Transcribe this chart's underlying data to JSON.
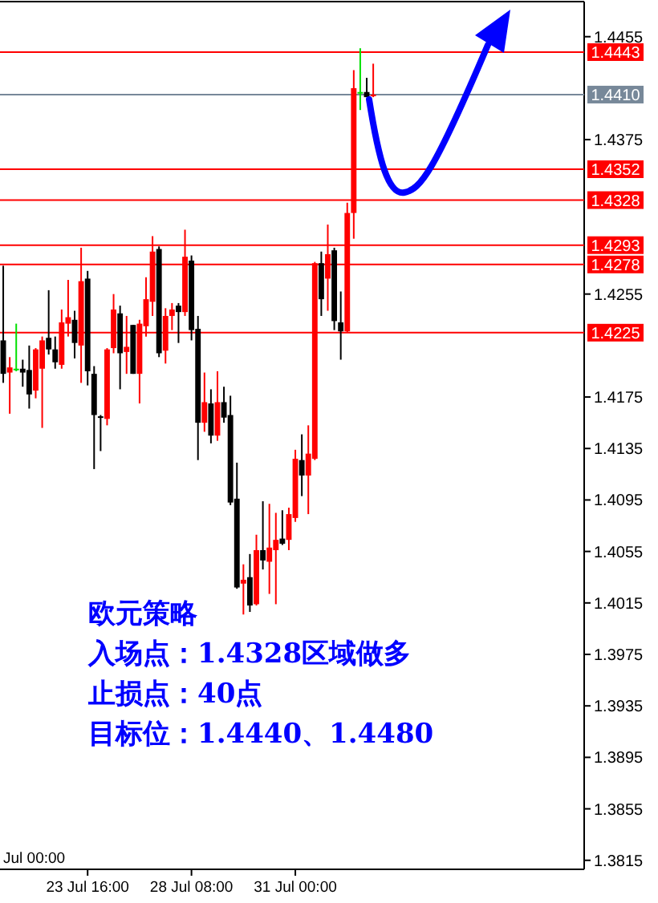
{
  "chart_data": {
    "type": "candlestick",
    "categories": [
      null,
      null,
      null,
      null,
      null,
      null,
      null,
      null,
      null,
      null,
      null,
      null,
      null,
      "23 Jul 16:00",
      null,
      null,
      null,
      null,
      null,
      null,
      null,
      null,
      null,
      null,
      null,
      null,
      null,
      null,
      null,
      "28 Jul 08:00",
      null,
      null,
      null,
      null,
      null,
      null,
      null,
      null,
      null,
      null,
      null,
      null,
      null,
      null,
      null,
      "31 Jul 00:00",
      null,
      null,
      null,
      null,
      null,
      null,
      null,
      null,
      null,
      null,
      null,
      null,
      null,
      null,
      null,
      null,
      null,
      null,
      null,
      null,
      null,
      null,
      null,
      null,
      null,
      null,
      null,
      null,
      null,
      null,
      null,
      null,
      null,
      null,
      null,
      null,
      null,
      null,
      null,
      null,
      null,
      null,
      null,
      null
    ],
    "ohlc": [
      [
        1.4219,
        1.4277,
        1.4186,
        1.4193
      ],
      [
        1.4194,
        1.4206,
        1.4162,
        1.4198
      ],
      [
        1.4197,
        1.4232,
        1.4195,
        1.4197
      ],
      [
        1.4197,
        1.4204,
        1.4183,
        1.4194
      ],
      [
        1.4196,
        1.4215,
        1.4166,
        1.4177
      ],
      [
        1.418,
        1.4213,
        1.4174,
        1.4212
      ],
      [
        1.4197,
        1.4222,
        1.4151,
        1.4219
      ],
      [
        1.4221,
        1.4258,
        1.4208,
        1.4212
      ],
      [
        1.4212,
        1.4222,
        1.4197,
        1.4202
      ],
      [
        1.42,
        1.4243,
        1.4197,
        1.4233
      ],
      [
        1.4232,
        1.4266,
        1.4222,
        1.4237
      ],
      [
        1.4235,
        1.4242,
        1.4205,
        1.4217
      ],
      [
        1.4215,
        1.4291,
        1.4186,
        1.4265
      ],
      [
        1.4267,
        1.4273,
        1.4184,
        1.4195
      ],
      [
        1.4193,
        1.4199,
        1.4119,
        1.4161
      ],
      [
        1.416,
        1.4161,
        1.4133,
        1.4159
      ],
      [
        1.4158,
        1.4213,
        1.4153,
        1.4212
      ],
      [
        1.4213,
        1.4255,
        1.4209,
        1.4243
      ],
      [
        1.424,
        1.4246,
        1.4181,
        1.4209
      ],
      [
        1.421,
        1.4238,
        1.4193,
        1.4214
      ],
      [
        1.4231,
        1.4231,
        1.4193,
        1.4193
      ],
      [
        1.4193,
        1.4235,
        1.417,
        1.4232
      ],
      [
        1.423,
        1.4268,
        1.4222,
        1.4251
      ],
      [
        1.4249,
        1.43,
        1.4238,
        1.4288
      ],
      [
        1.429,
        1.4292,
        1.4206,
        1.4209
      ],
      [
        1.4211,
        1.4244,
        1.4201,
        1.4238
      ],
      [
        1.4238,
        1.4248,
        1.4227,
        1.4243
      ],
      [
        1.4246,
        1.4248,
        1.4217,
        1.4241
      ],
      [
        1.4241,
        1.4305,
        1.4238,
        1.4284
      ],
      [
        1.4281,
        1.4285,
        1.4219,
        1.4227
      ],
      [
        1.4228,
        1.4238,
        1.4126,
        1.4155
      ],
      [
        1.4155,
        1.4194,
        1.4148,
        1.4171
      ],
      [
        1.417,
        1.4181,
        1.4139,
        1.4145
      ],
      [
        1.4145,
        1.4195,
        1.4141,
        1.4171
      ],
      [
        1.4171,
        1.4183,
        1.4155,
        1.4159
      ],
      [
        1.4161,
        1.4176,
        1.4091,
        1.4093
      ],
      [
        1.4096,
        1.4124,
        1.4026,
        1.4027
      ],
      [
        1.403,
        1.4045,
        1.4006,
        1.4033
      ],
      [
        1.4035,
        1.4053,
        1.4008,
        1.4013
      ],
      [
        1.4014,
        1.4068,
        1.4013,
        1.4056
      ],
      [
        1.4056,
        1.4094,
        1.4041,
        1.4048
      ],
      [
        1.4047,
        1.4092,
        1.4022,
        1.4058
      ],
      [
        1.4056,
        1.4085,
        1.4014,
        1.4064
      ],
      [
        1.4065,
        1.4087,
        1.406,
        1.4061
      ],
      [
        1.4064,
        1.4089,
        1.4056,
        1.4084
      ],
      [
        1.4081,
        1.4134,
        1.4078,
        1.4127
      ],
      [
        1.4126,
        1.4146,
        1.4098,
        1.4114
      ],
      [
        1.4114,
        1.4153,
        1.4084,
        1.4131
      ],
      [
        1.4127,
        1.428,
        1.4126,
        1.4279
      ],
      [
        1.4279,
        1.4288,
        1.4238,
        1.4251
      ],
      [
        1.4267,
        1.4309,
        1.4242,
        1.4286
      ],
      [
        1.4289,
        1.4291,
        1.4227,
        1.4234
      ],
      [
        1.4233,
        1.4257,
        1.4204,
        1.4226
      ],
      [
        1.4226,
        1.4326,
        1.4225,
        1.4318
      ],
      [
        1.4318,
        1.4429,
        1.4298,
        1.4415
      ],
      [
        1.4412,
        1.4446,
        1.4398,
        1.4412
      ],
      [
        1.4412,
        1.4423,
        1.4408,
        1.4408
      ],
      [
        1.4409,
        1.4434,
        1.4408,
        1.441
      ],
      null,
      null,
      null,
      null,
      null,
      null,
      null,
      null,
      null,
      null,
      null,
      null,
      null,
      null,
      null,
      null,
      null,
      null,
      null,
      null,
      null,
      null,
      null,
      null,
      null,
      null,
      null,
      null,
      null,
      null,
      null,
      null
    ],
    "colors": [
      "#000000",
      "#ff0000",
      "#00e000",
      "#000000",
      "#000000",
      "#ff0000",
      "#ff0000",
      "#000000",
      "#000000",
      "#ff0000",
      "#ff0000",
      "#000000",
      "#ff0000",
      "#000000",
      "#000000",
      "#000000",
      "#ff0000",
      "#ff0000",
      "#000000",
      "#ff0000",
      "#000000",
      "#ff0000",
      "#ff0000",
      "#ff0000",
      "#000000",
      "#ff0000",
      "#ff0000",
      "#000000",
      "#ff0000",
      "#000000",
      "#000000",
      "#ff0000",
      "#000000",
      "#ff0000",
      "#000000",
      "#000000",
      "#000000",
      "#ff0000",
      "#000000",
      "#ff0000",
      "#000000",
      "#ff0000",
      "#ff0000",
      "#000000",
      "#ff0000",
      "#ff0000",
      "#000000",
      "#ff0000",
      "#ff0000",
      "#000000",
      "#ff0000",
      "#000000",
      "#000000",
      "#ff0000",
      "#ff0000",
      "#00e000",
      "#000000",
      "#ff0000",
      null,
      null,
      null,
      null,
      null,
      null,
      null,
      null,
      null,
      null,
      null,
      null,
      null,
      null,
      null,
      null,
      null,
      null,
      null,
      null,
      null,
      null,
      null,
      null,
      null,
      null,
      null,
      null,
      null,
      null,
      null,
      null
    ],
    "ylim": [
      1.3808,
      1.4481
    ],
    "yticks": [
      1.4455,
      1.4375,
      1.4255,
      1.4175,
      1.4135,
      1.4095,
      1.4055,
      1.4015,
      1.3975,
      1.3935,
      1.3895,
      1.3855,
      1.3815
    ],
    "ref_lines": [
      {
        "axis": "y",
        "value": 1.4443,
        "label": "1.4443",
        "color": "#ff0000"
      },
      {
        "axis": "y",
        "value": 1.441,
        "label": "1.4410",
        "color": "#778899"
      },
      {
        "axis": "y",
        "value": 1.4352,
        "label": "1.4352",
        "color": "#ff0000"
      },
      {
        "axis": "y",
        "value": 1.4328,
        "label": "1.4328",
        "color": "#ff0000"
      },
      {
        "axis": "y",
        "value": 1.4293,
        "label": "1.4293",
        "color": "#ff0000"
      },
      {
        "axis": "y",
        "value": 1.4278,
        "label": "1.4278",
        "color": "#ff0000"
      },
      {
        "axis": "y",
        "value": 1.4225,
        "label": "1.4225",
        "color": "#ff0000"
      }
    ],
    "annotations": [
      "Jul 00:00",
      "欧元策略",
      "入场点：1.4328区域做多",
      "止损点：40点",
      "目标位：1.4440、1.4480"
    ]
  }
}
